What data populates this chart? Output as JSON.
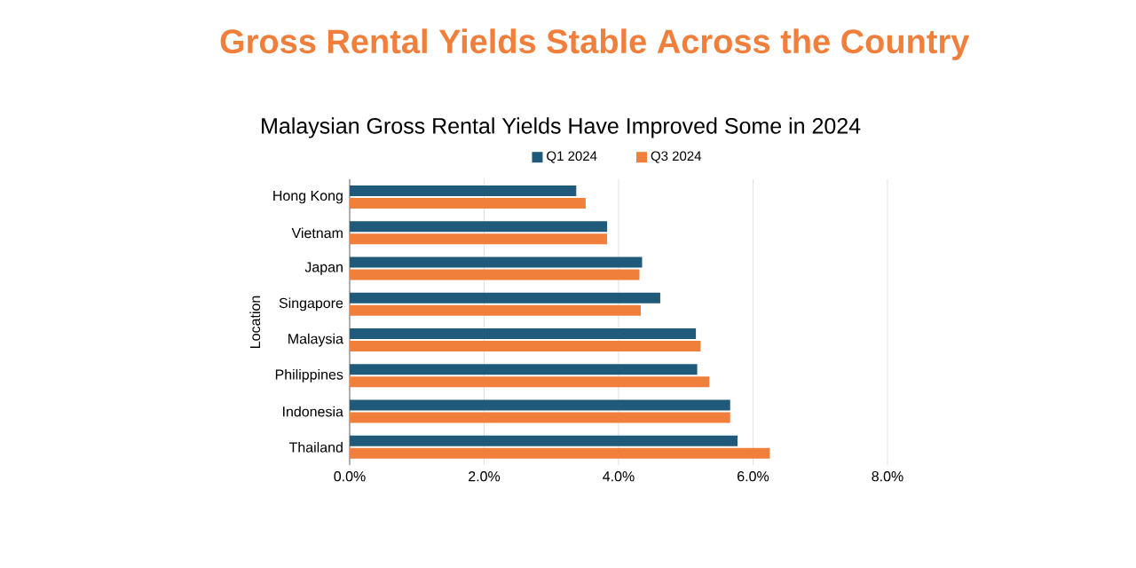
{
  "chart_data": {
    "type": "bar",
    "orientation": "horizontal",
    "title": "Gross Rental Yields Stable Across the Country",
    "subtitle": "Malaysian Gross Rental Yields Have Improved Some in 2024",
    "ylabel": "Location",
    "categories": [
      "Hong Kong",
      "Vietnam",
      "Japan",
      "Singapore",
      "Malaysia",
      "Philippines",
      "Indonesia",
      "Thailand"
    ],
    "series": [
      {
        "name": "Q1 2024",
        "color": "#1f5a7a",
        "values": [
          3.37,
          3.83,
          4.35,
          4.62,
          5.15,
          5.17,
          5.66,
          5.77
        ]
      },
      {
        "name": "Q3 2024",
        "color": "#f07f3c",
        "values": [
          3.51,
          3.83,
          4.31,
          4.33,
          5.22,
          5.35,
          5.66,
          6.25
        ]
      }
    ],
    "xlim": [
      0,
      8
    ],
    "xticks": [
      {
        "value": 0,
        "label": "0.0%"
      },
      {
        "value": 2,
        "label": "2.0%"
      },
      {
        "value": 4,
        "label": "4.0%"
      },
      {
        "value": 6,
        "label": "6.0%"
      },
      {
        "value": 8,
        "label": "8.0%"
      }
    ],
    "grid": "x",
    "legend": "top"
  }
}
